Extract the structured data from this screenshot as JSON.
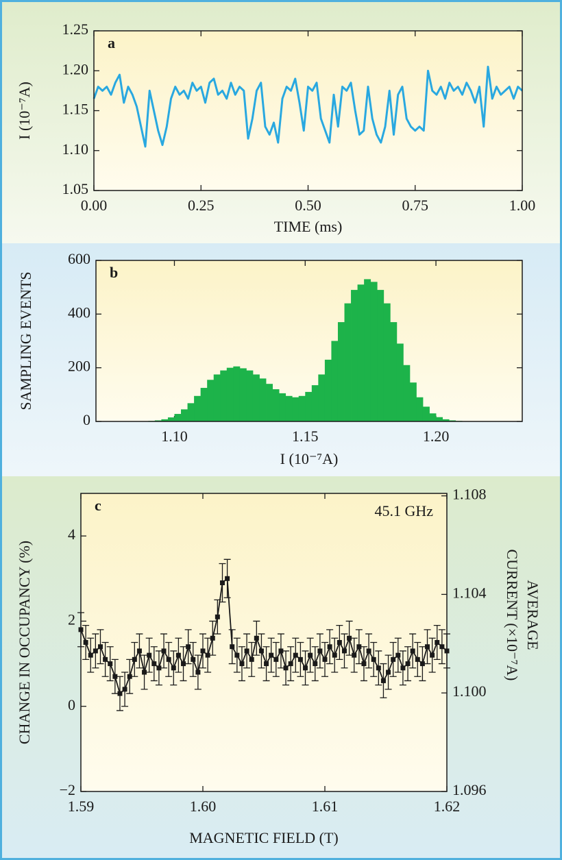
{
  "chart_data": [
    {
      "type": "line",
      "panel_label": "a",
      "xlabel": "TIME (ms)",
      "ylabel": "I (10⁻⁷A)",
      "color": "#29a8e0",
      "xlim": [
        0,
        1
      ],
      "ylim": [
        1.05,
        1.25
      ],
      "xticks": [
        {
          "value": 0,
          "label": "0.00"
        },
        0.25,
        {
          "value": 0.5,
          "label": "0.50"
        },
        0.75,
        {
          "value": 1,
          "label": "1.00"
        }
      ],
      "yticks": [
        1.05,
        {
          "value": 1.1,
          "label": "1.10"
        },
        1.15,
        {
          "value": 1.2,
          "label": "1.20"
        },
        1.25
      ],
      "x": [
        0,
        0.01,
        0.02,
        0.03,
        0.04,
        0.05,
        0.06,
        0.07,
        0.08,
        0.09,
        0.1,
        0.11,
        0.12,
        0.13,
        0.14,
        0.15,
        0.16,
        0.17,
        0.18,
        0.19,
        0.2,
        0.21,
        0.22,
        0.23,
        0.24,
        0.25,
        0.26,
        0.27,
        0.28,
        0.29,
        0.3,
        0.31,
        0.32,
        0.33,
        0.34,
        0.35,
        0.36,
        0.37,
        0.38,
        0.39,
        0.4,
        0.41,
        0.42,
        0.43,
        0.44,
        0.45,
        0.46,
        0.47,
        0.48,
        0.49,
        0.5,
        0.51,
        0.52,
        0.53,
        0.54,
        0.55,
        0.56,
        0.57,
        0.58,
        0.59,
        0.6,
        0.61,
        0.62,
        0.63,
        0.64,
        0.65,
        0.66,
        0.67,
        0.68,
        0.69,
        0.7,
        0.71,
        0.72,
        0.73,
        0.74,
        0.75,
        0.76,
        0.77,
        0.78,
        0.79,
        0.8,
        0.81,
        0.82,
        0.83,
        0.84,
        0.85,
        0.86,
        0.87,
        0.88,
        0.89,
        0.9,
        0.91,
        0.92,
        0.93,
        0.94,
        0.95,
        0.96,
        0.97,
        0.98,
        0.99,
        1
      ],
      "values": [
        1.165,
        1.18,
        1.175,
        1.18,
        1.17,
        1.185,
        1.195,
        1.16,
        1.18,
        1.17,
        1.155,
        1.13,
        1.105,
        1.175,
        1.15,
        1.125,
        1.107,
        1.13,
        1.165,
        1.18,
        1.17,
        1.175,
        1.165,
        1.185,
        1.175,
        1.18,
        1.16,
        1.185,
        1.19,
        1.17,
        1.175,
        1.165,
        1.185,
        1.17,
        1.18,
        1.175,
        1.115,
        1.14,
        1.175,
        1.185,
        1.13,
        1.12,
        1.135,
        1.11,
        1.165,
        1.18,
        1.175,
        1.19,
        1.16,
        1.125,
        1.18,
        1.175,
        1.185,
        1.14,
        1.125,
        1.11,
        1.17,
        1.13,
        1.18,
        1.175,
        1.185,
        1.15,
        1.12,
        1.125,
        1.18,
        1.14,
        1.12,
        1.11,
        1.13,
        1.175,
        1.12,
        1.17,
        1.18,
        1.14,
        1.13,
        1.125,
        1.13,
        1.125,
        1.2,
        1.175,
        1.17,
        1.18,
        1.165,
        1.185,
        1.175,
        1.18,
        1.17,
        1.185,
        1.175,
        1.16,
        1.18,
        1.13,
        1.205,
        1.165,
        1.18,
        1.17,
        1.175,
        1.18,
        1.165,
        1.18,
        1.175
      ]
    },
    {
      "type": "histogram",
      "panel_label": "b",
      "xlabel": "I (10⁻⁷A)",
      "ylabel": "SAMPLING EVENTS",
      "color": "#1db34a",
      "xlim": [
        1.07,
        1.233
      ],
      "ylim": [
        0,
        600
      ],
      "xticks": [
        {
          "value": 1.1,
          "label": "1.10"
        },
        1.15,
        {
          "value": 1.2,
          "label": "1.20"
        }
      ],
      "yticks": [
        0,
        200,
        400,
        600
      ],
      "bins": [
        1.09,
        1.0925,
        1.095,
        1.0975,
        1.1,
        1.1025,
        1.105,
        1.1075,
        1.11,
        1.1125,
        1.115,
        1.1175,
        1.12,
        1.1225,
        1.125,
        1.1275,
        1.13,
        1.1325,
        1.135,
        1.1375,
        1.14,
        1.1425,
        1.145,
        1.1475,
        1.15,
        1.1525,
        1.155,
        1.1575,
        1.16,
        1.1625,
        1.165,
        1.1675,
        1.17,
        1.1725,
        1.175,
        1.1775,
        1.18,
        1.1825,
        1.185,
        1.1875,
        1.19,
        1.1925,
        1.195,
        1.1975,
        1.2,
        1.2025,
        1.205,
        1.2075,
        1.21,
        1.2125,
        1.215
      ],
      "counts": [
        2,
        4,
        8,
        15,
        28,
        45,
        68,
        95,
        125,
        155,
        175,
        190,
        200,
        205,
        198,
        190,
        175,
        160,
        140,
        120,
        105,
        95,
        90,
        95,
        110,
        135,
        175,
        230,
        300,
        370,
        440,
        490,
        510,
        530,
        520,
        490,
        440,
        370,
        290,
        210,
        145,
        90,
        55,
        30,
        16,
        8,
        4,
        2,
        1,
        0
      ]
    },
    {
      "type": "errorbar",
      "panel_label": "c",
      "annotation": "45.1 GHz",
      "xlabel": "MAGNETIC FIELD (T)",
      "ylabel": "CHANGE IN OCCUPANCY (%)",
      "y2label": [
        "AVERAGE",
        "CURRENT (×10⁻⁷A)"
      ],
      "color": "#1a1a1a",
      "xlim": [
        1.59,
        1.62
      ],
      "ylim": [
        -2,
        5
      ],
      "y2lim": [
        1.096,
        1.1081
      ],
      "xticks": [
        1.59,
        {
          "value": 1.6,
          "label": "1.60"
        },
        1.61,
        1.62
      ],
      "yticks": [
        {
          "value": -2,
          "label": "−2"
        },
        0,
        2,
        4
      ],
      "y2ticks": [
        1.096,
        {
          "value": 1.1,
          "label": "1.100"
        },
        1.104,
        1.108
      ],
      "x": [
        1.59,
        1.5904,
        1.5908,
        1.5912,
        1.5916,
        1.592,
        1.5924,
        1.5928,
        1.5932,
        1.5936,
        1.594,
        1.5944,
        1.5948,
        1.5952,
        1.5956,
        1.596,
        1.5964,
        1.5968,
        1.5972,
        1.5976,
        1.598,
        1.5984,
        1.5988,
        1.5992,
        1.5996,
        1.6,
        1.6004,
        1.6008,
        1.6012,
        1.6016,
        1.602,
        1.6024,
        1.6028,
        1.6032,
        1.6036,
        1.604,
        1.6044,
        1.6048,
        1.6052,
        1.6056,
        1.606,
        1.6064,
        1.6068,
        1.6072,
        1.6076,
        1.608,
        1.6084,
        1.6088,
        1.6092,
        1.6096,
        1.61,
        1.6104,
        1.6108,
        1.6112,
        1.6116,
        1.612,
        1.6124,
        1.6128,
        1.6132,
        1.6136,
        1.614,
        1.6144,
        1.6148,
        1.6152,
        1.6156,
        1.616,
        1.6164,
        1.6168,
        1.6172,
        1.6176,
        1.618,
        1.6184,
        1.6188,
        1.6192,
        1.6196,
        1.62
      ],
      "values": [
        1.8,
        1.5,
        1.2,
        1.3,
        1.4,
        1.1,
        1.0,
        0.7,
        0.3,
        0.4,
        0.7,
        1.1,
        1.3,
        0.8,
        1.2,
        1.0,
        0.9,
        1.3,
        1.1,
        0.9,
        1.2,
        1.0,
        1.4,
        1.1,
        0.8,
        1.3,
        1.2,
        1.6,
        2.1,
        2.9,
        3.0,
        1.4,
        1.2,
        1.0,
        1.3,
        1.1,
        1.6,
        1.3,
        1.0,
        1.2,
        1.1,
        1.3,
        0.9,
        1.0,
        1.2,
        1.1,
        0.9,
        1.2,
        1.0,
        1.3,
        1.1,
        1.4,
        1.2,
        1.5,
        1.3,
        1.6,
        1.2,
        1.4,
        1.0,
        1.3,
        1.1,
        0.9,
        0.6,
        0.8,
        1.1,
        1.2,
        0.9,
        1.0,
        1.3,
        1.1,
        1.0,
        1.4,
        1.2,
        1.5,
        1.4,
        1.3
      ],
      "errors": [
        0.4,
        0.4,
        0.4,
        0.4,
        0.4,
        0.4,
        0.4,
        0.4,
        0.4,
        0.4,
        0.4,
        0.4,
        0.4,
        0.4,
        0.4,
        0.4,
        0.4,
        0.4,
        0.4,
        0.4,
        0.4,
        0.4,
        0.4,
        0.4,
        0.4,
        0.4,
        0.4,
        0.4,
        0.4,
        0.45,
        0.45,
        0.4,
        0.4,
        0.4,
        0.4,
        0.4,
        0.4,
        0.4,
        0.4,
        0.4,
        0.4,
        0.4,
        0.4,
        0.4,
        0.4,
        0.4,
        0.4,
        0.4,
        0.4,
        0.4,
        0.4,
        0.4,
        0.4,
        0.4,
        0.4,
        0.4,
        0.4,
        0.4,
        0.4,
        0.4,
        0.4,
        0.4,
        0.4,
        0.4,
        0.4,
        0.4,
        0.4,
        0.4,
        0.4,
        0.4,
        0.4,
        0.4,
        0.4,
        0.4,
        0.4,
        0.4
      ]
    }
  ]
}
